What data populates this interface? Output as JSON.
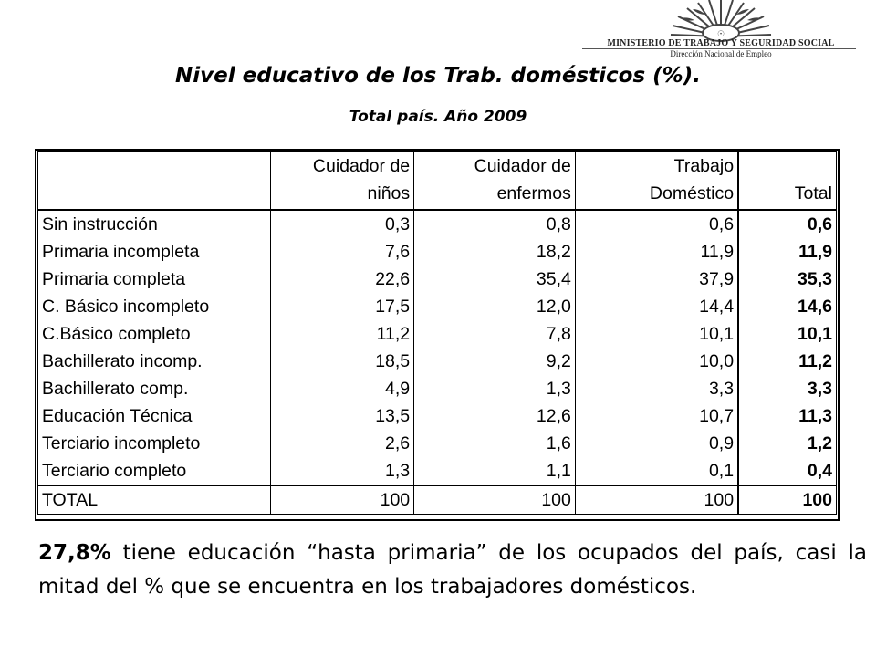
{
  "header": {
    "org_name": "MINISTERIO DE TRABAJO Y SEGURIDAD SOCIAL",
    "dept_name": "Dirección Nacional de Empleo",
    "logo_icon": "sun-emblem-icon"
  },
  "title": "Nivel educativo de los Trab. domésticos (%).",
  "subtitle": "Total país. Año 2009",
  "table": {
    "columns": [
      {
        "line1": "",
        "line2": ""
      },
      {
        "line1": "Cuidador de",
        "line2": "niños"
      },
      {
        "line1": "Cuidador de",
        "line2": "enfermos"
      },
      {
        "line1": "Trabajo",
        "line2": "Doméstico"
      },
      {
        "line1": "",
        "line2": "Total"
      }
    ],
    "rows": [
      [
        "Sin instrucción",
        "0,3",
        "0,8",
        "0,6",
        "0,6"
      ],
      [
        "Primaria incompleta",
        "7,6",
        "18,2",
        "11,9",
        "11,9"
      ],
      [
        "Primaria completa",
        "22,6",
        "35,4",
        "37,9",
        "35,3"
      ],
      [
        "C. Básico incompleto",
        "17,5",
        "12,0",
        "14,4",
        "14,6"
      ],
      [
        "C.Básico completo",
        "11,2",
        "7,8",
        "10,1",
        "10,1"
      ],
      [
        "Bachillerato incomp.",
        "18,5",
        "9,2",
        "10,0",
        "11,2"
      ],
      [
        "Bachillerato comp.",
        "4,9",
        "1,3",
        "3,3",
        "3,3"
      ],
      [
        "Educación Técnica",
        "13,5",
        "12,6",
        "10,7",
        "11,3"
      ],
      [
        "Terciario incompleto",
        "2,6",
        "1,6",
        "0,9",
        "1,2"
      ],
      [
        "Terciario completo",
        "1,3",
        "1,1",
        "0,1",
        "0,4"
      ]
    ],
    "total_row": [
      "TOTAL",
      "100",
      "100",
      "100",
      "100"
    ]
  },
  "note": {
    "lead": "27,8%",
    "text": " tiene educación “hasta primaria” de los ocupados del país, casi la mitad del % que se encuentra en los trabajadores domésticos."
  }
}
